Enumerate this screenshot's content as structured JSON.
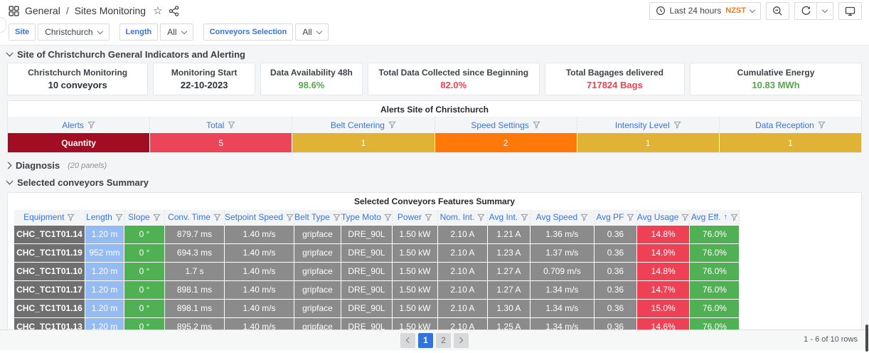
{
  "navbar": {
    "breadcrumb_section": "General",
    "breadcrumb_separator": "/",
    "dashboard_title": "Sites Monitoring",
    "time_range": "Last 24 hours",
    "timezone": "NZST"
  },
  "icons": {
    "star": "☆",
    "sort_asc": "↑"
  },
  "filters": [
    {
      "label": "Site",
      "value": "Christchurch"
    },
    {
      "label": "Length",
      "value": "All"
    },
    {
      "label": "Conveyors Selection",
      "value": "All"
    }
  ],
  "sections": {
    "indicators": "Site of Christchurch General Indicators and Alerting",
    "diagnosis": "Diagnosis",
    "diagnosis_panels": "(20 panels)",
    "summary": "Selected conveyors Summary"
  },
  "stats": [
    {
      "title": "Christchurch Monitoring",
      "value": "10 conveyors",
      "color": "#2c3235"
    },
    {
      "title": "Monitoring Start",
      "value": "22-10-2023",
      "color": "#2c3235"
    },
    {
      "title": "Data Availability 48h",
      "value": "98.6%",
      "color": "#56a64b"
    },
    {
      "title": "Total Data Collected since Beginning",
      "value": "82.0%",
      "color": "#ef4155"
    },
    {
      "title": "Total Bagages delivered",
      "value": "717824 Bags",
      "color": "#ef4155"
    },
    {
      "title": "Cumulative Energy",
      "value": "10.83 MWh",
      "color": "#56a64b"
    }
  ],
  "alerts": {
    "title": "Alerts Site of Christchurch",
    "columns": [
      "Alerts",
      "Total",
      "Belt Centering",
      "Speed Settings",
      "Intensity Level",
      "Data Reception"
    ],
    "cells": [
      {
        "text": "Quantity",
        "bg": "#a30d23"
      },
      {
        "text": "5",
        "bg": "#ec4459"
      },
      {
        "text": "1",
        "bg": "#e0b235"
      },
      {
        "text": "2",
        "bg": "#ff780a"
      },
      {
        "text": "1",
        "bg": "#e0b235"
      },
      {
        "text": "1",
        "bg": "#e0b235"
      }
    ]
  },
  "summary_table": {
    "title": "Selected Conveyors Features Summary",
    "columns": [
      {
        "label": "Equipment",
        "cell_bg": "#6f6f6f"
      },
      {
        "label": "Length",
        "cell_bg": "#95bbf3"
      },
      {
        "label": "Slope",
        "cell_bg": "#4fb153"
      },
      {
        "label": "Conv. Time",
        "cell_bg": "#8b8b8b"
      },
      {
        "label": "Setpoint Speed",
        "cell_bg": "#8b8b8b"
      },
      {
        "label": "Belt Type",
        "cell_bg": "#8b8b8b"
      },
      {
        "label": "Type Moto",
        "cell_bg": "#8b8b8b"
      },
      {
        "label": "Power",
        "cell_bg": "#8b8b8b"
      },
      {
        "label": "Nom. Int.",
        "cell_bg": "#8b8b8b"
      },
      {
        "label": "Avg Int.",
        "cell_bg": "#8b8b8b"
      },
      {
        "label": "Avg Speed",
        "cell_bg": "#8b8b8b"
      },
      {
        "label": "Avg PF",
        "cell_bg": "#8b8b8b"
      },
      {
        "label": "Avg Usage",
        "cell_bg": "#ee4156"
      },
      {
        "label": "Avg Eff.",
        "cell_bg": "#4fb153",
        "sorted": "asc"
      }
    ],
    "rows": [
      [
        "CHC_TC1T01.14",
        "1.20 m",
        "0 °",
        "879.7 ms",
        "1.40 m/s",
        "gripface",
        "DRE_90L",
        "1.50 kW",
        "2.10 A",
        "1.21 A",
        "1.36 m/s",
        "0.36",
        "14.8%",
        "76.0%"
      ],
      [
        "CHC_TC1T01.19",
        "952 mm",
        "0 °",
        "694.3 ms",
        "1.40 m/s",
        "gripface",
        "DRE_90L",
        "1.50 kW",
        "2.10 A",
        "1.23 A",
        "1.37 m/s",
        "0.36",
        "14.9%",
        "76.0%"
      ],
      [
        "CHC_TC1T01.10",
        "1.20 m",
        "0 °",
        "1.7 s",
        "1.40 m/s",
        "gripface",
        "DRE_90L",
        "1.50 kW",
        "2.10 A",
        "1.27 A",
        "0.709 m/s",
        "0.36",
        "14.8%",
        "76.0%"
      ],
      [
        "CHC_TC1T01.17",
        "1.20 m",
        "0 °",
        "898.1 ms",
        "1.40 m/s",
        "gripface",
        "DRE_90L",
        "1.50 kW",
        "2.10 A",
        "1.27 A",
        "1.34 m/s",
        "0.36",
        "14.7%",
        "76.0%"
      ],
      [
        "CHC_TC1T01.16",
        "1.20 m",
        "0 °",
        "898.1 ms",
        "1.40 m/s",
        "gripface",
        "DRE_90L",
        "1.50 kW",
        "2.10 A",
        "1.30 A",
        "1.34 m/s",
        "0.36",
        "15.0%",
        "76.0%"
      ],
      [
        "CHC_TC1T01.13",
        "1.20 m",
        "0 °",
        "895.2 ms",
        "1.40 m/s",
        "gripface",
        "DRE_90L",
        "1.50 kW",
        "2.10 A",
        "1.25 A",
        "1.34 m/s",
        "0.36",
        "14.6%",
        "76.0%"
      ]
    ]
  },
  "pagination": {
    "pages": [
      "1",
      "2"
    ],
    "active": "1",
    "rows_summary": "1 - 6 of 10 rows"
  }
}
